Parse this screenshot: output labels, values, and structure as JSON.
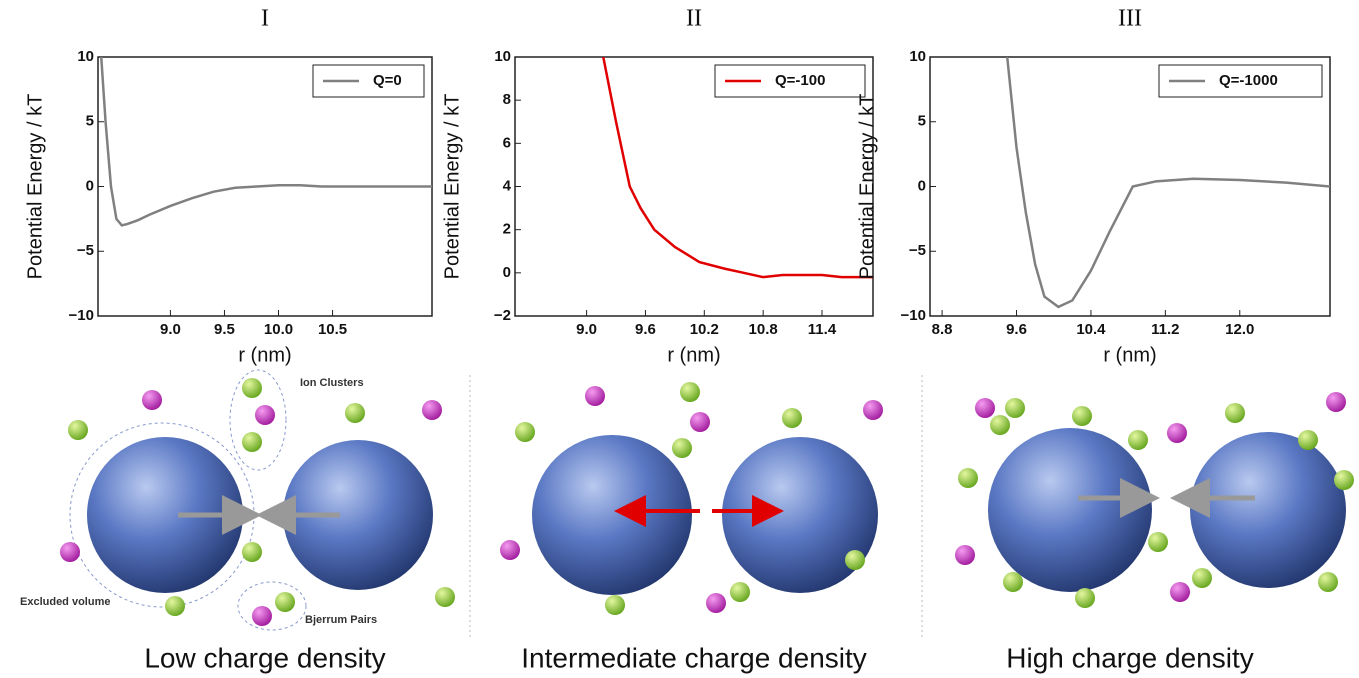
{
  "chart_data": [
    {
      "type": "line",
      "panel": "I",
      "caption": "Low charge density",
      "annotations": [
        "Ion Clusters",
        "Excluded volume",
        "Bjerrum Pairs"
      ],
      "xlabel": "r (nm)",
      "ylabel": "Potential Energy / kT",
      "legend": "upper right",
      "x": [
        8.36,
        8.4,
        8.45,
        8.5,
        8.55,
        8.6,
        8.7,
        8.8,
        9.0,
        9.2,
        9.4,
        9.6,
        9.8,
        10.0,
        10.2,
        10.4,
        10.6,
        10.8,
        11.0,
        11.2,
        11.42
      ],
      "series": [
        {
          "name": "Q=0",
          "color": "#808080",
          "values": [
            10,
            5,
            0,
            -2.5,
            -3.0,
            -2.9,
            -2.6,
            -2.2,
            -1.5,
            -0.9,
            -0.4,
            -0.1,
            0,
            0.1,
            0.1,
            0,
            0,
            0,
            0,
            0,
            0
          ]
        }
      ],
      "xlim": [
        8.33,
        11.42
      ],
      "ylim": [
        -10,
        10
      ],
      "xticks": [
        {
          "value": 9,
          "label": "9.0"
        },
        9.5,
        {
          "value": 10,
          "label": "10.0"
        },
        10.5
      ],
      "yticks": [
        {
          "value": -10,
          "label": "−10"
        },
        {
          "value": -5,
          "label": "−5"
        },
        0,
        5,
        10
      ]
    },
    {
      "type": "line",
      "panel": "II",
      "caption": "Intermediate charge density",
      "annotations": [],
      "xlabel": "r (nm)",
      "ylabel": "Potential Energy / kT",
      "legend": "upper right",
      "x": [
        9.17,
        9.3,
        9.44,
        9.55,
        9.69,
        9.9,
        10.15,
        10.4,
        10.6,
        10.8,
        11.0,
        11.2,
        11.4,
        11.6,
        11.92
      ],
      "series": [
        {
          "name": "Q=-100",
          "color": "#e00000",
          "values": [
            10,
            7,
            4,
            3,
            2,
            1.2,
            0.5,
            0.2,
            0,
            -0.2,
            -0.1,
            -0.1,
            -0.1,
            -0.2,
            -0.2
          ]
        }
      ],
      "xlim": [
        8.27,
        11.92
      ],
      "ylim": [
        -2,
        10
      ],
      "xticks": [
        {
          "value": 9,
          "label": "9.0"
        },
        9.6,
        10.2,
        10.8,
        11.4
      ],
      "yticks": [
        {
          "value": -2,
          "label": "−2"
        },
        0,
        2,
        4,
        6,
        8,
        10
      ]
    },
    {
      "type": "line",
      "panel": "III",
      "caption": "High charge density",
      "annotations": [],
      "xlabel": "r (nm)",
      "ylabel": "Potential Energy / kT",
      "legend": "upper right",
      "x": [
        9.5,
        9.6,
        9.7,
        9.8,
        9.9,
        10.05,
        10.2,
        10.4,
        10.6,
        10.85,
        11.1,
        11.5,
        12.0,
        12.5,
        12.97
      ],
      "series": [
        {
          "name": "Q=-1000",
          "color": "#808080",
          "values": [
            10,
            3,
            -2,
            -6,
            -8.5,
            -9.3,
            -8.8,
            -6.5,
            -3.5,
            0,
            0.4,
            0.6,
            0.5,
            0.3,
            0
          ]
        }
      ],
      "xlim": [
        8.67,
        12.97
      ],
      "ylim": [
        -10,
        10
      ],
      "xticks": [
        8.8,
        9.6,
        10.4,
        11.2,
        {
          "value": 12,
          "label": "12.0"
        }
      ],
      "yticks": [
        {
          "value": -10,
          "label": "−10"
        },
        {
          "value": -5,
          "label": "−5"
        },
        0,
        5,
        10
      ]
    }
  ]
}
